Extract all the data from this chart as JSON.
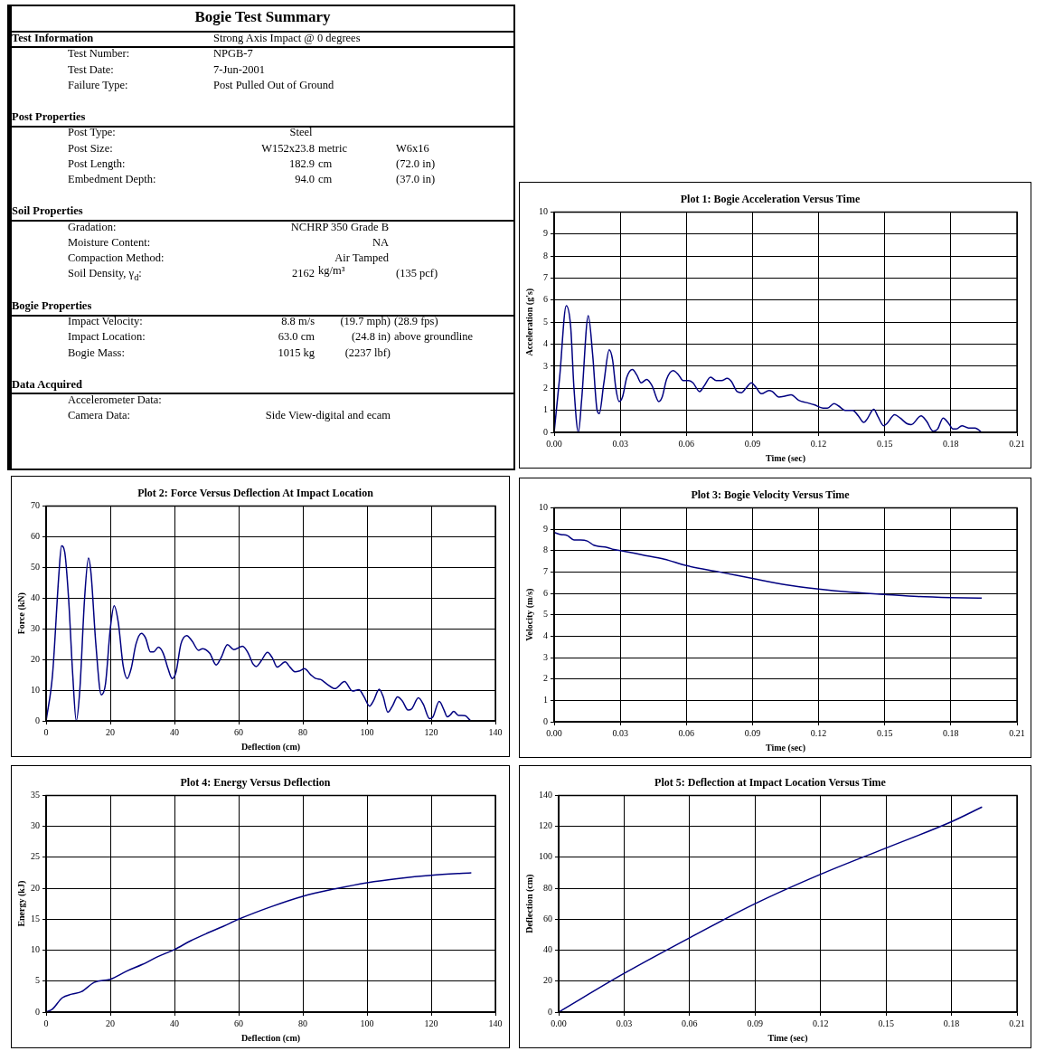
{
  "chart_data": [
    {
      "type": "other",
      "title": "Bogie Test Summary",
      "annotations": [
        "Test Information",
        "Strong Axis Impact @ 0 degrees",
        "Test Number:",
        "NPGB-7",
        "Test Date:",
        "7-Jun-2001",
        "Failure Type:",
        "Post Pulled Out of Ground",
        "Post Properties",
        "Post Type:",
        "Steel",
        "Post Size:",
        "W152x23.8",
        "metric",
        "W6x16",
        "Post Length:",
        "182.9",
        "cm",
        "(72.0 in)",
        "Embedment Depth:",
        "94.0",
        "cm",
        "(37.0 in)",
        "Soil Properties",
        "Gradation:",
        "NCHRP 350 Grade B",
        "Moisture Content:",
        "NA",
        "Compaction Method:",
        "Air Tamped",
        "Soil Density, γ$_{d}$:",
        "2162",
        "kg/m³",
        "(135 pcf)",
        "Bogie Properties",
        "Impact Velocity:",
        "8.8 m/s",
        "(19.7 mph)",
        "(28.9 fps)",
        "Impact Location:",
        "63.0 cm",
        "(24.8 in)",
        "above groundline",
        "Bogie Mass:",
        "1015 kg",
        "(2237 lbf)",
        "Data Acquired",
        "Accelerometer Data:",
        "Camera Data:",
        "Side View-digital and ecam"
      ]
    },
    {
      "type": "line",
      "title": "Plot 1: Bogie Acceleration Versus Time",
      "xlabel": "Time (sec)",
      "ylabel": "Acceleration (g's)",
      "color": "#000080",
      "grid": true,
      "xlim": [
        0,
        0.21
      ],
      "ylim": [
        0,
        10
      ],
      "xticks": [
        {
          "value": 0,
          "label": "0.00"
        },
        {
          "value": 0.03,
          "label": "0.03"
        },
        {
          "value": 0.06,
          "label": "0.06"
        },
        {
          "value": 0.09,
          "label": "0.09"
        },
        {
          "value": 0.12,
          "label": "0.12"
        },
        {
          "value": 0.15,
          "label": "0.15"
        },
        {
          "value": 0.18,
          "label": "0.18"
        },
        0.21
      ],
      "yticks": [
        0,
        1,
        2,
        3,
        4,
        5,
        6,
        7,
        8,
        9,
        10
      ],
      "x": [
        0,
        0.0025,
        0.0055,
        0.0075,
        0.009,
        0.011,
        0.0125,
        0.0155,
        0.0175,
        0.0195,
        0.0205,
        0.0225,
        0.025,
        0.0265,
        0.028,
        0.0295,
        0.031,
        0.033,
        0.0355,
        0.0375,
        0.0395,
        0.042,
        0.0445,
        0.0475,
        0.049,
        0.051,
        0.054,
        0.0565,
        0.0585,
        0.061,
        0.063,
        0.066,
        0.068,
        0.071,
        0.0735,
        0.076,
        0.0785,
        0.0805,
        0.083,
        0.085,
        0.087,
        0.0895,
        0.0915,
        0.094,
        0.0975,
        0.099,
        0.102,
        0.105,
        0.1075,
        0.111,
        0.1145,
        0.118,
        0.122,
        0.124,
        0.127,
        0.129,
        0.132,
        0.1355,
        0.138,
        0.1405,
        0.142,
        0.145,
        0.147,
        0.1495,
        0.151,
        0.1545,
        0.157,
        0.16,
        0.162,
        0.1665,
        0.169,
        0.172,
        0.174,
        0.1765,
        0.179,
        0.181,
        0.1825,
        0.185,
        0.188,
        0.191,
        0.194
      ],
      "values": [
        0,
        2.5,
        5.75,
        4.8,
        2,
        0,
        1.5,
        5.3,
        3.5,
        1,
        0.85,
        2.2,
        3.75,
        3.3,
        2,
        1.4,
        1.6,
        2.5,
        2.85,
        2.6,
        2.25,
        2.4,
        2.1,
        1.4,
        1.6,
        2.4,
        2.8,
        2.6,
        2.35,
        2.35,
        2.25,
        1.85,
        2.1,
        2.5,
        2.35,
        2.35,
        2.45,
        2.3,
        1.85,
        1.8,
        2,
        2.25,
        2.05,
        1.75,
        1.9,
        1.85,
        1.6,
        1.65,
        1.7,
        1.45,
        1.35,
        1.25,
        1.1,
        1.1,
        1.3,
        1.2,
        1,
        1,
        0.75,
        0.45,
        0.6,
        1.05,
        0.7,
        0.3,
        0.4,
        0.8,
        0.65,
        0.4,
        0.35,
        0.75,
        0.5,
        0.05,
        0.15,
        0.65,
        0.4,
        0.15,
        0.15,
        0.3,
        0.2,
        0.2,
        0
      ]
    },
    {
      "type": "line",
      "title": "Plot 2: Force Versus Deflection At Impact Location",
      "xlabel": "Deflection (cm)",
      "ylabel": "Force (kN)",
      "color": "#000080",
      "grid": true,
      "xlim": [
        0,
        140
      ],
      "ylim": [
        0,
        70
      ],
      "xticks": [
        0,
        20,
        40,
        60,
        80,
        100,
        120,
        140
      ],
      "yticks": [
        0,
        10,
        20,
        30,
        40,
        50,
        60,
        70
      ],
      "x": [
        0,
        2,
        4,
        4.8,
        5.8,
        7,
        8.3,
        9.4,
        10.5,
        12,
        13.2,
        14,
        15.5,
        17.2,
        18.5,
        20,
        21.2,
        22.5,
        24,
        25.3,
        26.5,
        28,
        29.7,
        31,
        32.5,
        33.5,
        35,
        36.5,
        38,
        39.3,
        40.5,
        42,
        43.8,
        45.5,
        47.5,
        48.7,
        51,
        53,
        54.5,
        56.5,
        58.5,
        61.2,
        63,
        64.5,
        65.5,
        67,
        69,
        70.5,
        72,
        74.5,
        76,
        77.5,
        79,
        80.5,
        82.5,
        84,
        85.5,
        87.5,
        90,
        93,
        95.5,
        97.5,
        99,
        100.8,
        102,
        103.8,
        105,
        106.5,
        108,
        109.5,
        111,
        112.8,
        114,
        116,
        117.5,
        119.5,
        120.5,
        122.5,
        124,
        125,
        126,
        127,
        128.5,
        130.5,
        132.3
      ],
      "values": [
        0,
        15,
        48,
        57,
        55,
        40,
        15,
        0,
        10,
        40,
        53,
        48,
        25,
        8.5,
        12,
        30,
        37.5,
        32,
        18,
        13.8,
        17,
        25,
        28.5,
        27,
        22.5,
        22.5,
        24,
        22,
        17,
        13.8,
        16,
        25,
        27.8,
        26,
        23,
        23.5,
        22,
        18.2,
        20.5,
        24.8,
        23.2,
        24.3,
        22,
        18.5,
        17.7,
        19.5,
        22.3,
        20.5,
        17.5,
        19.2,
        17.5,
        16,
        16.3,
        17,
        15,
        13.8,
        13.5,
        12,
        10.5,
        12.8,
        9.7,
        10.2,
        8,
        4.8,
        6.5,
        10.3,
        8,
        2.8,
        5,
        7.8,
        6.5,
        3.5,
        4,
        7.5,
        5.5,
        0.7,
        1.2,
        6.3,
        3.5,
        1.3,
        2,
        3.1,
        1.8,
        1.7,
        0
      ]
    },
    {
      "type": "line",
      "title": "Plot 3: Bogie Velocity Versus Time",
      "xlabel": "Time (sec)",
      "ylabel": "Velocity (m/s)",
      "color": "#000080",
      "grid": true,
      "xlim": [
        0,
        0.21
      ],
      "ylim": [
        0,
        10
      ],
      "xticks": [
        {
          "value": 0,
          "label": "0.00"
        },
        {
          "value": 0.03,
          "label": "0.03"
        },
        {
          "value": 0.06,
          "label": "0.06"
        },
        {
          "value": 0.09,
          "label": "0.09"
        },
        {
          "value": 0.12,
          "label": "0.12"
        },
        {
          "value": 0.15,
          "label": "0.15"
        },
        {
          "value": 0.18,
          "label": "0.18"
        },
        0.21
      ],
      "yticks": [
        0,
        1,
        2,
        3,
        4,
        5,
        6,
        7,
        8,
        9,
        10
      ],
      "x": [
        0,
        0.003,
        0.006,
        0.009,
        0.012,
        0.015,
        0.018,
        0.02,
        0.024,
        0.027,
        0.03,
        0.04,
        0.05,
        0.06,
        0.075,
        0.09,
        0.105,
        0.12,
        0.135,
        0.15,
        0.165,
        0.18,
        0.194
      ],
      "values": [
        8.85,
        8.75,
        8.7,
        8.5,
        8.5,
        8.45,
        8.25,
        8.2,
        8.15,
        8.05,
        8,
        7.8,
        7.6,
        7.3,
        7,
        6.7,
        6.4,
        6.2,
        6.05,
        5.95,
        5.85,
        5.8,
        5.78
      ]
    },
    {
      "type": "line",
      "title": "Plot 4: Energy Versus Deflection",
      "xlabel": "Deflection (cm)",
      "ylabel": "Energy (kJ)",
      "color": "#000080",
      "grid": true,
      "xlim": [
        0,
        140
      ],
      "ylim": [
        0,
        35
      ],
      "xticks": [
        0,
        20,
        40,
        60,
        80,
        100,
        120,
        140
      ],
      "yticks": [
        0,
        5,
        10,
        15,
        20,
        25,
        30,
        35
      ],
      "x": [
        0,
        2,
        5,
        8,
        11,
        15,
        20,
        25,
        30,
        35,
        40,
        45,
        50,
        55,
        60,
        70,
        80,
        90,
        100,
        110,
        120,
        132.5
      ],
      "values": [
        0,
        0.5,
        2.3,
        2.9,
        3.3,
        4.8,
        5.3,
        6.6,
        7.7,
        9,
        10.1,
        11.5,
        12.7,
        13.8,
        15,
        17,
        18.7,
        19.9,
        20.9,
        21.6,
        22.1,
        22.5
      ]
    },
    {
      "type": "line",
      "title": "Plot 5: Deflection at Impact Location Versus Time",
      "xlabel": "Time (sec)",
      "ylabel": "Deflection (cm)",
      "color": "#000080",
      "grid": true,
      "xlim": [
        0,
        0.21
      ],
      "ylim": [
        0,
        140
      ],
      "xticks": [
        {
          "value": 0,
          "label": "0.00"
        },
        {
          "value": 0.03,
          "label": "0.03"
        },
        {
          "value": 0.06,
          "label": "0.06"
        },
        {
          "value": 0.09,
          "label": "0.09"
        },
        {
          "value": 0.12,
          "label": "0.12"
        },
        {
          "value": 0.15,
          "label": "0.15"
        },
        {
          "value": 0.18,
          "label": "0.18"
        },
        0.21
      ],
      "yticks": [
        0,
        20,
        40,
        60,
        80,
        100,
        120,
        140
      ],
      "x": [
        0,
        0.03,
        0.06,
        0.09,
        0.12,
        0.15,
        0.18,
        0.194
      ],
      "values": [
        0,
        25,
        48,
        70,
        89,
        106,
        123,
        132.5
      ]
    }
  ]
}
